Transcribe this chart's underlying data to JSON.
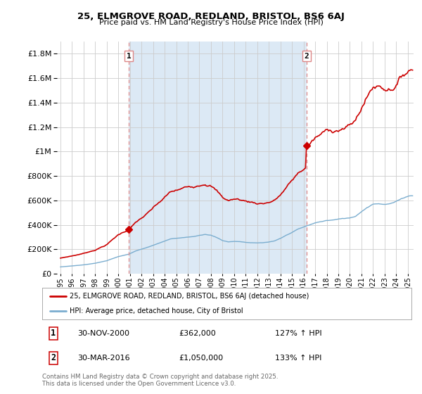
{
  "title_line1": "25, ELMGROVE ROAD, REDLAND, BRISTOL, BS6 6AJ",
  "title_line2": "Price paid vs. HM Land Registry's House Price Index (HPI)",
  "background_color": "#ffffff",
  "grid_color": "#cccccc",
  "shade_color": "#dce9f5",
  "sale1_date_num": 2000.917,
  "sale1_price": 362000,
  "sale1_date_str": "30-NOV-2000",
  "sale1_hpi_pct": "127% ↑ HPI",
  "sale2_date_num": 2016.247,
  "sale2_price": 1050000,
  "sale2_date_str": "30-MAR-2016",
  "sale2_hpi_pct": "133% ↑ HPI",
  "legend_label1": "25, ELMGROVE ROAD, REDLAND, BRISTOL, BS6 6AJ (detached house)",
  "legend_label2": "HPI: Average price, detached house, City of Bristol",
  "footer": "Contains HM Land Registry data © Crown copyright and database right 2025.\nThis data is licensed under the Open Government Licence v3.0.",
  "line1_color": "#cc0000",
  "line2_color": "#7aadcf",
  "vline_color": "#dd8888",
  "marker_color": "#cc0000",
  "ylim": [
    0,
    1900000
  ],
  "xlim": [
    1994.7,
    2025.5
  ],
  "yticks": [
    0,
    200000,
    400000,
    600000,
    800000,
    1000000,
    1200000,
    1400000,
    1600000,
    1800000
  ]
}
